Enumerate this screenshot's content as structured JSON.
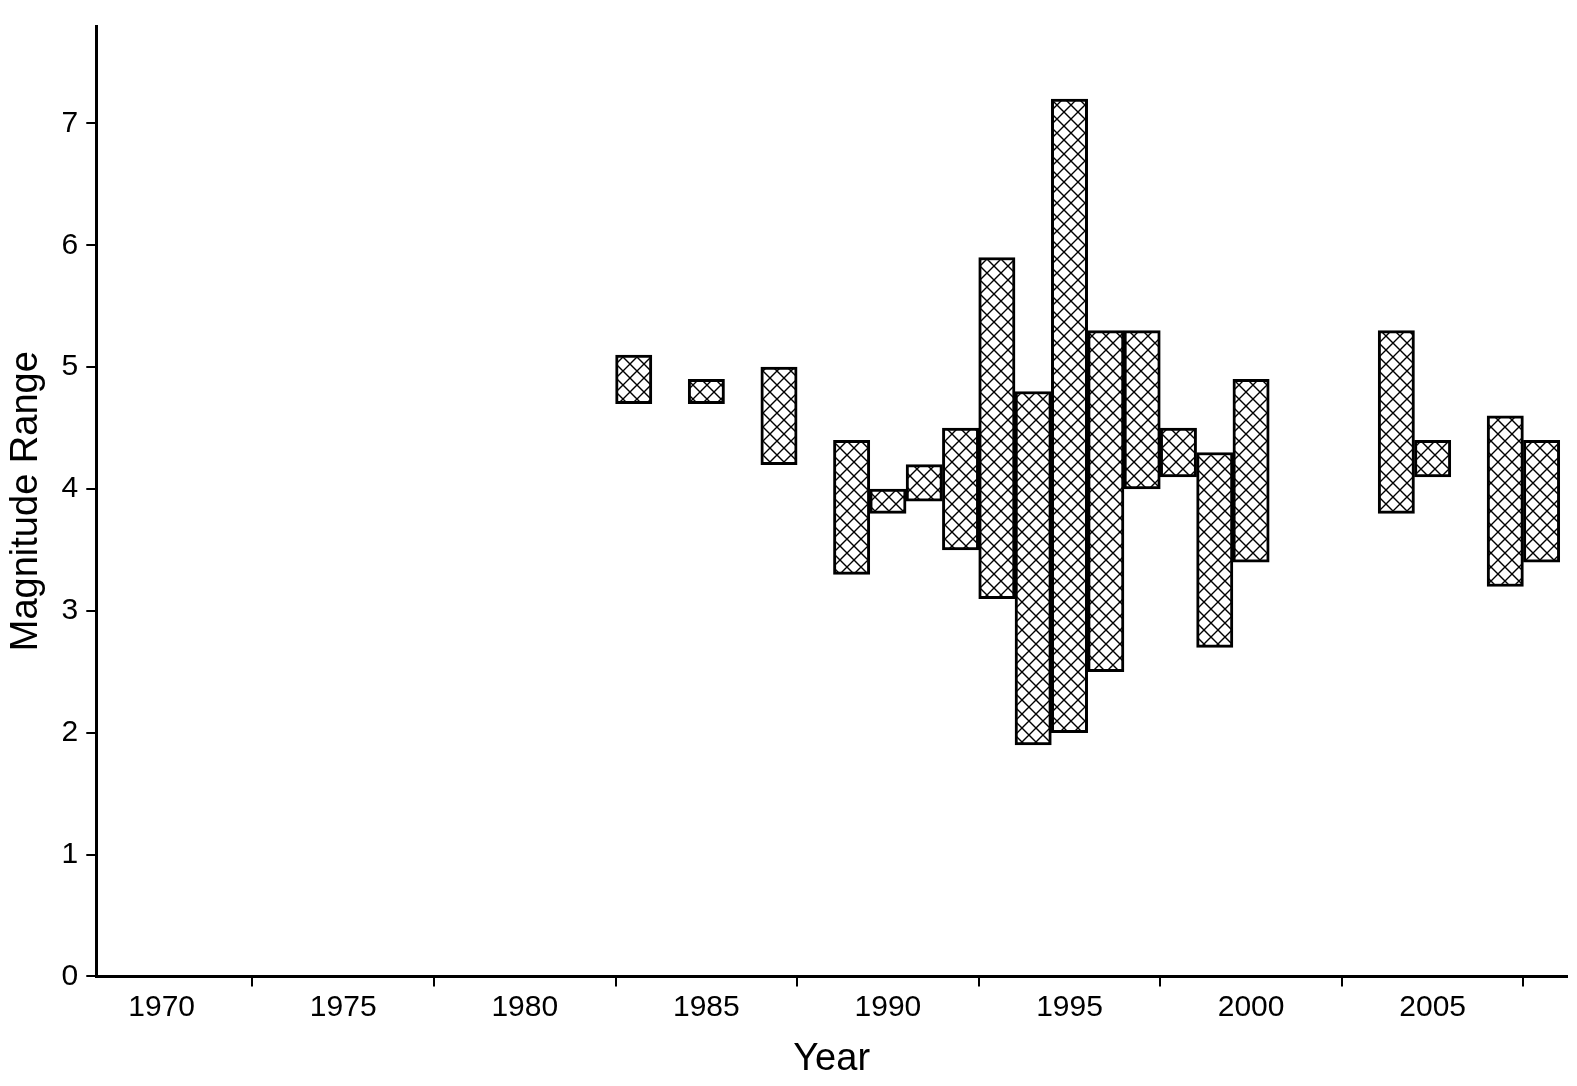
{
  "chart_data": {
    "type": "bar",
    "x_label": "Year",
    "y_label": "Magnitude Range",
    "x": [
      1983,
      1985,
      1987,
      1989,
      1990,
      1991,
      1992,
      1993,
      1994,
      1995,
      1996,
      1997,
      1998,
      1999,
      2000,
      2004,
      2005,
      2007,
      2008
    ],
    "values": [
      [
        4.7,
        5.1
      ],
      [
        4.7,
        4.9
      ],
      [
        4.2,
        5.0
      ],
      [
        3.3,
        4.4
      ],
      [
        3.8,
        4.0
      ],
      [
        3.9,
        4.2
      ],
      [
        3.5,
        4.5
      ],
      [
        3.1,
        5.9
      ],
      [
        1.9,
        4.8
      ],
      [
        2.0,
        7.2
      ],
      [
        2.5,
        5.3
      ],
      [
        4.0,
        5.3
      ],
      [
        4.1,
        4.5
      ],
      [
        2.7,
        4.3
      ],
      [
        3.4,
        4.9
      ],
      [
        3.8,
        5.3
      ],
      [
        4.1,
        4.4
      ],
      [
        3.2,
        4.6
      ],
      [
        3.4,
        4.4
      ]
    ],
    "color": "#000000",
    "xlim": [
      1968.2,
      2008.7
    ],
    "xticks": [
      1970,
      1975,
      1980,
      1985,
      1990,
      1995,
      2000,
      2005
    ],
    "ylim": [
      0,
      7.8
    ],
    "yticks": [
      0,
      1,
      2,
      3,
      4,
      5,
      6,
      7
    ],
    "grid": false
  }
}
